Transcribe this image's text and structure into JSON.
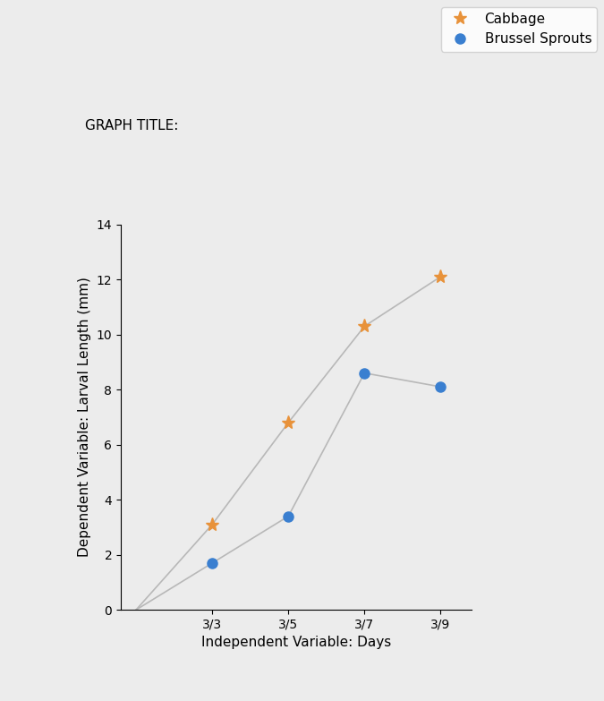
{
  "chart_data": {
    "type": "line",
    "title": "GRAPH TITLE:",
    "x_label": "Independent Variable: Days",
    "y_label": "Dependent Variable: Larval Length (mm)",
    "categories": [
      null,
      "3/3",
      "3/5",
      "3/7",
      "3/9"
    ],
    "series": [
      {
        "name": "Cabbage",
        "color": "#e8923a",
        "marker": "asterisk",
        "values": [
          0,
          3.1,
          6.8,
          10.3,
          12.1
        ]
      },
      {
        "name": "Brussel Sprouts",
        "color": "#3a7fd0",
        "marker": "circle",
        "values": [
          0,
          1.7,
          3.4,
          8.6,
          8.1
        ]
      }
    ],
    "ylim": [
      0,
      14
    ],
    "yticks": [
      0,
      2,
      4,
      6,
      8,
      10,
      12,
      14
    ],
    "legend": "upper right",
    "grid": false
  }
}
